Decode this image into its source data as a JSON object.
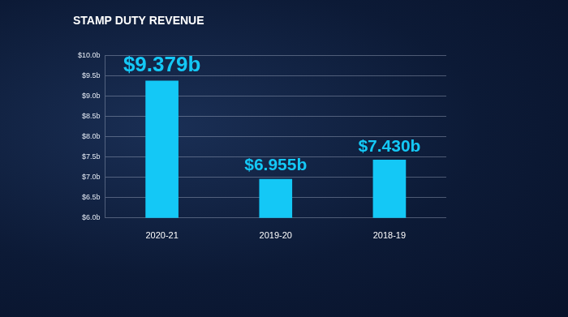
{
  "chart_data": {
    "type": "bar",
    "title": "STAMP DUTY REVENUE",
    "categories": [
      "2020-21",
      "2019-20",
      "2018-19"
    ],
    "values": [
      9.379,
      6.955,
      7.43
    ],
    "value_labels": [
      "$9.379b",
      "$6.955b",
      "$7.430b"
    ],
    "color": "#14c8f6",
    "ylim": [
      6.0,
      10.0
    ],
    "yticks": [
      {
        "value": 6.0,
        "label": "$6.0b"
      },
      {
        "value": 6.5,
        "label": "$6.5b"
      },
      {
        "value": 7.0,
        "label": "$7.0b"
      },
      {
        "value": 7.5,
        "label": "$7.5b"
      },
      {
        "value": 8.0,
        "label": "$8.0b"
      },
      {
        "value": 8.5,
        "label": "$8.5b"
      },
      {
        "value": 9.0,
        "label": "$9.0b"
      },
      {
        "value": 9.5,
        "label": "$9.5b"
      },
      {
        "value": 10.0,
        "label": "$10.0b"
      }
    ],
    "grid": true,
    "data_labels": true
  }
}
